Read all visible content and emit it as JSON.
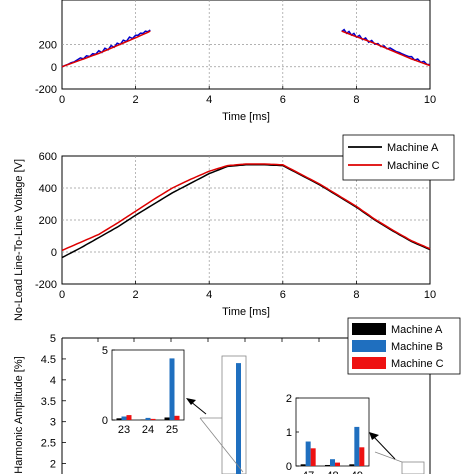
{
  "chart_data": [
    {
      "type": "line",
      "xlabel": "Time [ms]",
      "ylabel": "",
      "xlim": [
        0,
        10
      ],
      "ylim": [
        -200,
        600
      ],
      "xticks": [
        0,
        2,
        4,
        6,
        8,
        10
      ],
      "yticks": [
        -200,
        0,
        200
      ],
      "grid": true,
      "series": [
        {
          "color": "#0000cc",
          "noisy": true,
          "x": [
            0,
            0.5,
            1,
            1.5,
            2,
            2.4,
            7.6,
            8,
            8.5,
            9,
            9.5,
            10
          ],
          "y": [
            0,
            70,
            130,
            200,
            280,
            330,
            330,
            280,
            210,
            150,
            80,
            20
          ]
        },
        {
          "color": "#dd0000",
          "noisy": false,
          "x": [
            0,
            0.5,
            1,
            1.5,
            2,
            2.4,
            7.6,
            8,
            8.5,
            9,
            9.5,
            10
          ],
          "y": [
            0,
            60,
            120,
            190,
            260,
            320,
            320,
            270,
            210,
            140,
            70,
            10
          ]
        }
      ]
    },
    {
      "type": "line",
      "xlabel": "Time [ms]",
      "ylabel": "No-Load Line-To-Line Voltage [V]",
      "xlim": [
        0,
        10
      ],
      "ylim": [
        -200,
        600
      ],
      "xticks": [
        0,
        2,
        4,
        6,
        8,
        10
      ],
      "yticks": [
        -200,
        0,
        200,
        400,
        600
      ],
      "grid": true,
      "legend": "top-right",
      "series": [
        {
          "name": "Machine A",
          "color": "#000000",
          "x": [
            0,
            0.5,
            1,
            1.5,
            2,
            2.5,
            3,
            3.5,
            4,
            4.5,
            5,
            5.5,
            6,
            6.5,
            7,
            7.5,
            8,
            8.5,
            9,
            9.5,
            10
          ],
          "y": [
            -35,
            25,
            90,
            155,
            230,
            300,
            370,
            430,
            490,
            535,
            545,
            545,
            540,
            480,
            420,
            350,
            280,
            200,
            130,
            65,
            15
          ]
        },
        {
          "name": "Machine C",
          "color": "#dd0000",
          "x": [
            0,
            0.5,
            1,
            1.5,
            2,
            2.5,
            3,
            3.5,
            4,
            4.5,
            5,
            5.5,
            6,
            6.5,
            7,
            7.5,
            8,
            8.5,
            9,
            9.5,
            10
          ],
          "y": [
            10,
            60,
            110,
            180,
            255,
            330,
            400,
            455,
            505,
            540,
            550,
            550,
            545,
            485,
            425,
            355,
            285,
            205,
            135,
            70,
            20
          ]
        }
      ]
    },
    {
      "type": "bar",
      "ylabel": "Harmonic Amplitude [%]",
      "ylim": [
        0,
        5
      ],
      "yticks": [
        2,
        2.5,
        3,
        3.5,
        4,
        4.5,
        5
      ],
      "legend": "top-right",
      "series_names": [
        "Machine A",
        "Machine B",
        "Machine C"
      ],
      "series_colors": [
        "#000000",
        "#1f6fbf",
        "#ee1111"
      ],
      "main_bar": {
        "color": "#1f6fbf",
        "value": 4.4
      },
      "insets": [
        {
          "categories": [
            "23",
            "24",
            "25"
          ],
          "ylim": [
            0,
            5
          ],
          "yticks": [
            0,
            5
          ],
          "values": [
            [
              0.12,
              0.03,
              0.18
            ],
            [
              0.25,
              0.15,
              4.4
            ],
            [
              0.35,
              0.08,
              0.3
            ]
          ]
        },
        {
          "categories": [
            "47",
            "48",
            "49"
          ],
          "ylim": [
            0,
            2
          ],
          "yticks": [
            0,
            1,
            2
          ],
          "values": [
            [
              0.05,
              0.03,
              0.05
            ],
            [
              0.72,
              0.2,
              1.15
            ],
            [
              0.52,
              0.1,
              0.55
            ]
          ]
        }
      ]
    }
  ]
}
